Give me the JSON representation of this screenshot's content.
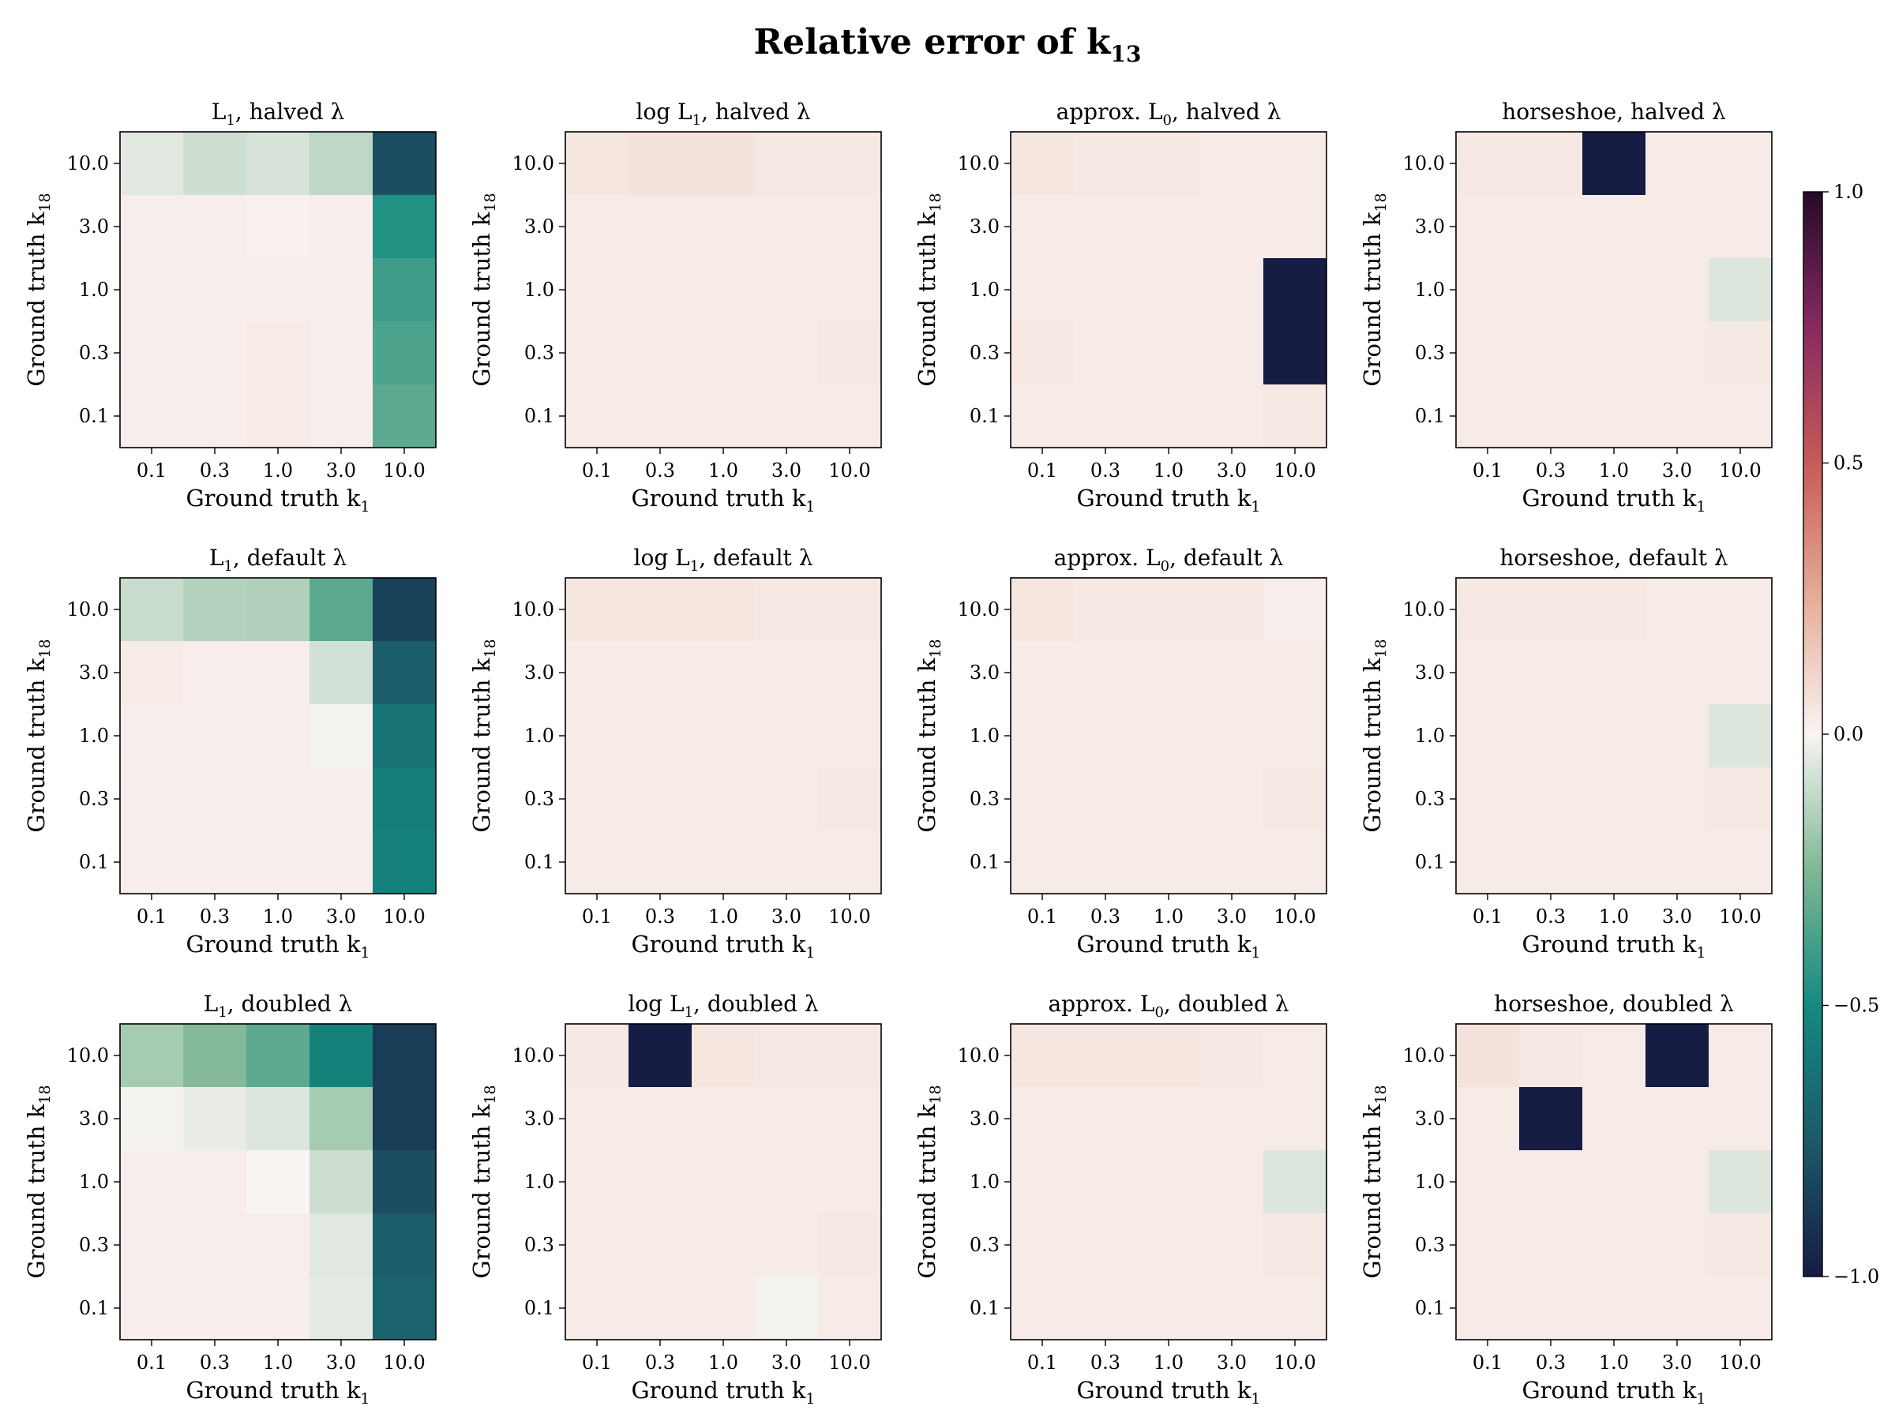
{
  "figure": {
    "title": "Relative error of k",
    "title_subscript": "13"
  },
  "colorbar": {
    "ticks": [
      "1.0",
      "0.5",
      "0.0",
      "−0.5",
      "−1.0"
    ],
    "tick_values": [
      1.0,
      0.5,
      0.0,
      -0.5,
      -1.0
    ],
    "vmin": -1.0,
    "vmax": 1.0,
    "colormap_stops": [
      {
        "v": -1.0,
        "color": "#161c44"
      },
      {
        "v": -0.75,
        "color": "#1c5a68"
      },
      {
        "v": -0.5,
        "color": "#158a80"
      },
      {
        "v": -0.25,
        "color": "#7fb896"
      },
      {
        "v": 0.0,
        "color": "#f9f4f2"
      },
      {
        "v": 0.25,
        "color": "#e6ad98"
      },
      {
        "v": 0.5,
        "color": "#c75b59"
      },
      {
        "v": 0.75,
        "color": "#872a60"
      },
      {
        "v": 1.0,
        "color": "#250a29"
      }
    ]
  },
  "chart_data": [
    {
      "type": "heatmap",
      "method": "L",
      "method_sub": "1",
      "method_prefix": "",
      "suffix": ", halved λ",
      "xlabel": "Ground truth k",
      "xlabel_sub": "1",
      "ylabel": "Ground truth k",
      "ylabel_sub": "18",
      "x_categories": [
        "0.1",
        "0.3",
        "1.0",
        "3.0",
        "10.0"
      ],
      "y_categories": [
        "10.0",
        "3.0",
        "1.0",
        "0.3",
        "0.1"
      ],
      "values": [
        [
          -0.05,
          -0.09,
          -0.07,
          -0.12,
          -0.8
        ],
        [
          0.02,
          0.02,
          0.01,
          0.02,
          -0.47
        ],
        [
          0.02,
          0.02,
          0.02,
          0.02,
          -0.4
        ],
        [
          0.02,
          0.02,
          0.03,
          0.02,
          -0.37
        ],
        [
          0.02,
          0.02,
          0.03,
          0.02,
          -0.33
        ]
      ]
    },
    {
      "type": "heatmap",
      "method": "L",
      "method_sub": "1",
      "method_prefix": "log ",
      "suffix": ", halved λ",
      "xlabel": "Ground truth k",
      "xlabel_sub": "1",
      "ylabel": "Ground truth k",
      "ylabel_sub": "18",
      "x_categories": [
        "0.1",
        "0.3",
        "1.0",
        "3.0",
        "10.0"
      ],
      "y_categories": [
        "10.0",
        "3.0",
        "1.0",
        "0.3",
        "0.1"
      ],
      "values": [
        [
          0.05,
          0.06,
          0.06,
          0.04,
          0.04
        ],
        [
          0.03,
          0.03,
          0.03,
          0.03,
          0.03
        ],
        [
          0.03,
          0.03,
          0.03,
          0.03,
          0.03
        ],
        [
          0.03,
          0.03,
          0.03,
          0.03,
          0.04
        ],
        [
          0.03,
          0.03,
          0.03,
          0.03,
          0.03
        ]
      ]
    },
    {
      "type": "heatmap",
      "method": "L",
      "method_sub": "0",
      "method_prefix": "approx. ",
      "suffix": ", halved λ",
      "xlabel": "Ground truth k",
      "xlabel_sub": "1",
      "ylabel": "Ground truth k",
      "ylabel_sub": "18",
      "x_categories": [
        "0.1",
        "0.3",
        "1.0",
        "3.0",
        "10.0"
      ],
      "y_categories": [
        "10.0",
        "3.0",
        "1.0",
        "0.3",
        "0.1"
      ],
      "values": [
        [
          0.05,
          0.04,
          0.04,
          0.03,
          0.03
        ],
        [
          0.03,
          0.03,
          0.03,
          0.03,
          0.03
        ],
        [
          0.03,
          0.03,
          0.03,
          0.03,
          -1.0
        ],
        [
          0.04,
          0.03,
          0.03,
          0.03,
          -1.0
        ],
        [
          0.03,
          0.03,
          0.03,
          0.03,
          0.04
        ]
      ]
    },
    {
      "type": "heatmap",
      "method": "horseshoe",
      "method_sub": "",
      "method_prefix": "",
      "suffix": ", halved λ",
      "xlabel": "Ground truth k",
      "xlabel_sub": "1",
      "ylabel": "Ground truth k",
      "ylabel_sub": "18",
      "x_categories": [
        "0.1",
        "0.3",
        "1.0",
        "3.0",
        "10.0"
      ],
      "y_categories": [
        "10.0",
        "3.0",
        "1.0",
        "0.3",
        "0.1"
      ],
      "values": [
        [
          0.04,
          0.04,
          -1.0,
          0.03,
          0.03
        ],
        [
          0.03,
          0.03,
          0.03,
          0.03,
          0.03
        ],
        [
          0.03,
          0.03,
          0.03,
          0.03,
          -0.06
        ],
        [
          0.03,
          0.03,
          0.03,
          0.03,
          0.04
        ],
        [
          0.03,
          0.03,
          0.03,
          0.03,
          0.03
        ]
      ]
    },
    {
      "type": "heatmap",
      "method": "L",
      "method_sub": "1",
      "method_prefix": "",
      "suffix": ", default λ",
      "xlabel": "Ground truth k",
      "xlabel_sub": "1",
      "ylabel": "Ground truth k",
      "ylabel_sub": "18",
      "x_categories": [
        "0.1",
        "0.3",
        "1.0",
        "3.0",
        "10.0"
      ],
      "y_categories": [
        "10.0",
        "3.0",
        "1.0",
        "0.3",
        "0.1"
      ],
      "values": [
        [
          -0.1,
          -0.14,
          -0.15,
          -0.33,
          -0.85
        ],
        [
          0.03,
          0.02,
          0.02,
          -0.08,
          -0.73
        ],
        [
          0.02,
          0.02,
          0.02,
          -0.01,
          -0.62
        ],
        [
          0.02,
          0.02,
          0.02,
          0.02,
          -0.57
        ],
        [
          0.02,
          0.02,
          0.02,
          0.02,
          -0.55
        ]
      ]
    },
    {
      "type": "heatmap",
      "method": "L",
      "method_sub": "1",
      "method_prefix": "log ",
      "suffix": ", default λ",
      "xlabel": "Ground truth k",
      "xlabel_sub": "1",
      "ylabel": "Ground truth k",
      "ylabel_sub": "18",
      "x_categories": [
        "0.1",
        "0.3",
        "1.0",
        "3.0",
        "10.0"
      ],
      "y_categories": [
        "10.0",
        "3.0",
        "1.0",
        "0.3",
        "0.1"
      ],
      "values": [
        [
          0.05,
          0.05,
          0.05,
          0.04,
          0.04
        ],
        [
          0.03,
          0.03,
          0.03,
          0.03,
          0.03
        ],
        [
          0.03,
          0.03,
          0.03,
          0.03,
          0.03
        ],
        [
          0.03,
          0.03,
          0.03,
          0.03,
          0.04
        ],
        [
          0.03,
          0.03,
          0.03,
          0.03,
          0.03
        ]
      ]
    },
    {
      "type": "heatmap",
      "method": "L",
      "method_sub": "0",
      "method_prefix": "approx. ",
      "suffix": ", default λ",
      "xlabel": "Ground truth k",
      "xlabel_sub": "1",
      "ylabel": "Ground truth k",
      "ylabel_sub": "18",
      "x_categories": [
        "0.1",
        "0.3",
        "1.0",
        "3.0",
        "10.0"
      ],
      "y_categories": [
        "10.0",
        "3.0",
        "1.0",
        "0.3",
        "0.1"
      ],
      "values": [
        [
          0.05,
          0.04,
          0.04,
          0.04,
          0.02
        ],
        [
          0.03,
          0.03,
          0.03,
          0.03,
          0.03
        ],
        [
          0.03,
          0.03,
          0.03,
          0.03,
          0.03
        ],
        [
          0.03,
          0.03,
          0.03,
          0.03,
          0.04
        ],
        [
          0.03,
          0.03,
          0.03,
          0.03,
          0.03
        ]
      ]
    },
    {
      "type": "heatmap",
      "method": "horseshoe",
      "method_sub": "",
      "method_prefix": "",
      "suffix": ", default λ",
      "xlabel": "Ground truth k",
      "xlabel_sub": "1",
      "ylabel": "Ground truth k",
      "ylabel_sub": "18",
      "x_categories": [
        "0.1",
        "0.3",
        "1.0",
        "3.0",
        "10.0"
      ],
      "y_categories": [
        "10.0",
        "3.0",
        "1.0",
        "0.3",
        "0.1"
      ],
      "values": [
        [
          0.04,
          0.04,
          0.04,
          0.03,
          0.03
        ],
        [
          0.03,
          0.03,
          0.03,
          0.03,
          0.03
        ],
        [
          0.03,
          0.03,
          0.03,
          0.03,
          -0.06
        ],
        [
          0.03,
          0.03,
          0.03,
          0.03,
          0.04
        ],
        [
          0.03,
          0.03,
          0.03,
          0.03,
          0.03
        ]
      ]
    },
    {
      "type": "heatmap",
      "method": "L",
      "method_sub": "1",
      "method_prefix": "",
      "suffix": ", doubled λ",
      "xlabel": "Ground truth k",
      "xlabel_sub": "1",
      "ylabel": "Ground truth k",
      "ylabel_sub": "18",
      "x_categories": [
        "0.1",
        "0.3",
        "1.0",
        "3.0",
        "10.0"
      ],
      "y_categories": [
        "10.0",
        "3.0",
        "1.0",
        "0.3",
        "0.1"
      ],
      "values": [
        [
          -0.17,
          -0.24,
          -0.33,
          -0.55,
          -0.87
        ],
        [
          -0.01,
          -0.03,
          -0.06,
          -0.17,
          -0.87
        ],
        [
          0.02,
          0.02,
          0.0,
          -0.09,
          -0.8
        ],
        [
          0.02,
          0.02,
          0.02,
          -0.05,
          -0.73
        ],
        [
          0.02,
          0.02,
          0.02,
          -0.04,
          -0.7
        ]
      ]
    },
    {
      "type": "heatmap",
      "method": "L",
      "method_sub": "1",
      "method_prefix": "log ",
      "suffix": ", doubled λ",
      "xlabel": "Ground truth k",
      "xlabel_sub": "1",
      "ylabel": "Ground truth k",
      "ylabel_sub": "18",
      "x_categories": [
        "0.1",
        "0.3",
        "1.0",
        "3.0",
        "10.0"
      ],
      "y_categories": [
        "10.0",
        "3.0",
        "1.0",
        "0.3",
        "0.1"
      ],
      "values": [
        [
          0.04,
          -1.0,
          0.05,
          0.04,
          0.04
        ],
        [
          0.03,
          0.03,
          0.03,
          0.03,
          0.03
        ],
        [
          0.03,
          0.03,
          0.03,
          0.03,
          0.03
        ],
        [
          0.03,
          0.03,
          0.03,
          0.03,
          0.04
        ],
        [
          0.03,
          0.03,
          0.03,
          -0.01,
          0.03
        ]
      ]
    },
    {
      "type": "heatmap",
      "method": "L",
      "method_sub": "0",
      "method_prefix": "approx. ",
      "suffix": ", doubled λ",
      "xlabel": "Ground truth k",
      "xlabel_sub": "1",
      "ylabel": "Ground truth k",
      "ylabel_sub": "18",
      "x_categories": [
        "0.1",
        "0.3",
        "1.0",
        "3.0",
        "10.0"
      ],
      "y_categories": [
        "10.0",
        "3.0",
        "1.0",
        "0.3",
        "0.1"
      ],
      "values": [
        [
          0.05,
          0.05,
          0.05,
          0.04,
          0.03
        ],
        [
          0.03,
          0.03,
          0.03,
          0.03,
          0.03
        ],
        [
          0.03,
          0.03,
          0.03,
          0.03,
          -0.06
        ],
        [
          0.03,
          0.03,
          0.03,
          0.03,
          0.04
        ],
        [
          0.03,
          0.03,
          0.03,
          0.03,
          0.03
        ]
      ]
    },
    {
      "type": "heatmap",
      "method": "horseshoe",
      "method_sub": "",
      "method_prefix": "",
      "suffix": ", doubled λ",
      "xlabel": "Ground truth k",
      "xlabel_sub": "1",
      "ylabel": "Ground truth k",
      "ylabel_sub": "18",
      "x_categories": [
        "0.1",
        "0.3",
        "1.0",
        "3.0",
        "10.0"
      ],
      "y_categories": [
        "10.0",
        "3.0",
        "1.0",
        "0.3",
        "0.1"
      ],
      "values": [
        [
          0.06,
          0.04,
          0.03,
          -1.0,
          0.03
        ],
        [
          0.03,
          -1.0,
          0.03,
          0.03,
          0.03
        ],
        [
          0.03,
          0.03,
          0.03,
          0.03,
          -0.06
        ],
        [
          0.03,
          0.03,
          0.03,
          0.03,
          0.04
        ],
        [
          0.03,
          0.03,
          0.03,
          0.03,
          0.03
        ]
      ]
    }
  ]
}
